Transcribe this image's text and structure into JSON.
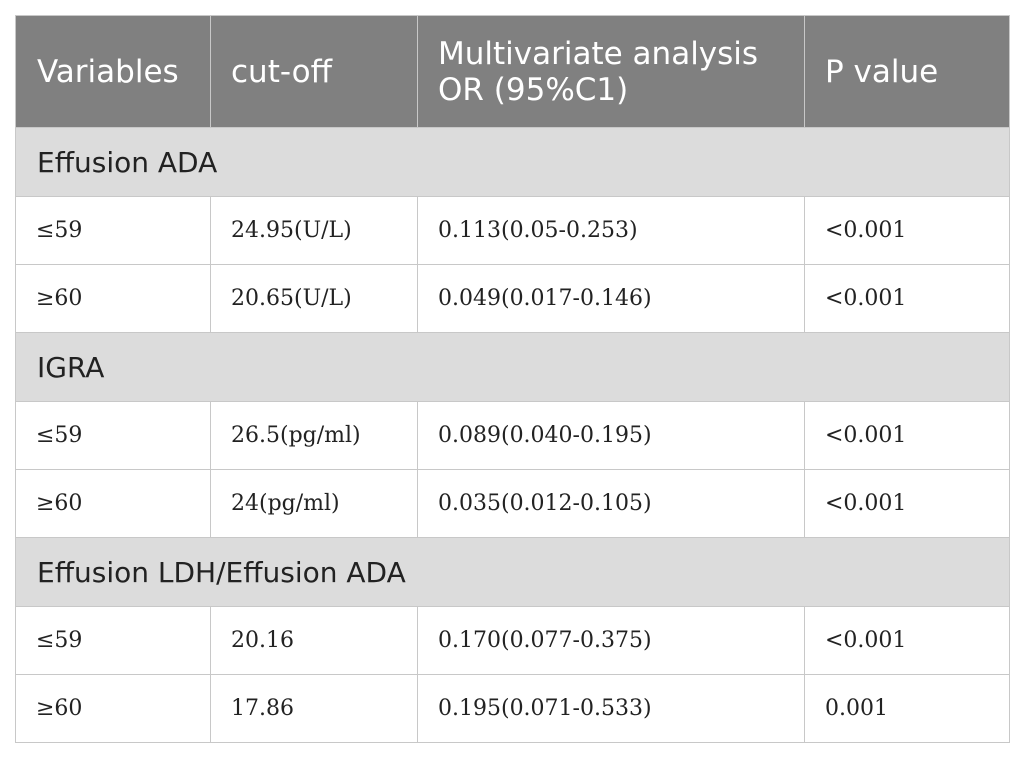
{
  "table": {
    "headers": [
      "Variables",
      "cut-off",
      "Multivariate analysis OR (95%C1)",
      "P value"
    ],
    "groups": [
      {
        "label": "Effusion ADA",
        "rows": [
          [
            "≤59",
            "24.95(U/L)",
            "0.113(0.05-0.253)",
            "<0.001"
          ],
          [
            "≥60",
            "20.65(U/L)",
            "0.049(0.017-0.146)",
            "<0.001"
          ]
        ]
      },
      {
        "label": "IGRA",
        "rows": [
          [
            "≤59",
            "26.5(pg/ml)",
            "0.089(0.040-0.195)",
            "<0.001"
          ],
          [
            "≥60",
            "24(pg/ml)",
            "0.035(0.012-0.105)",
            "<0.001"
          ]
        ]
      },
      {
        "label": "Effusion LDH/Effusion ADA",
        "rows": [
          [
            "≤59",
            "20.16",
            "0.170(0.077-0.375)",
            "<0.001"
          ],
          [
            "≥60",
            "17.86",
            "0.195(0.071-0.533)",
            "0.001"
          ]
        ]
      }
    ],
    "colors": {
      "header_bg": "#808080",
      "group_bg": "#dcdcdc",
      "border": "#c8c8c8"
    }
  }
}
